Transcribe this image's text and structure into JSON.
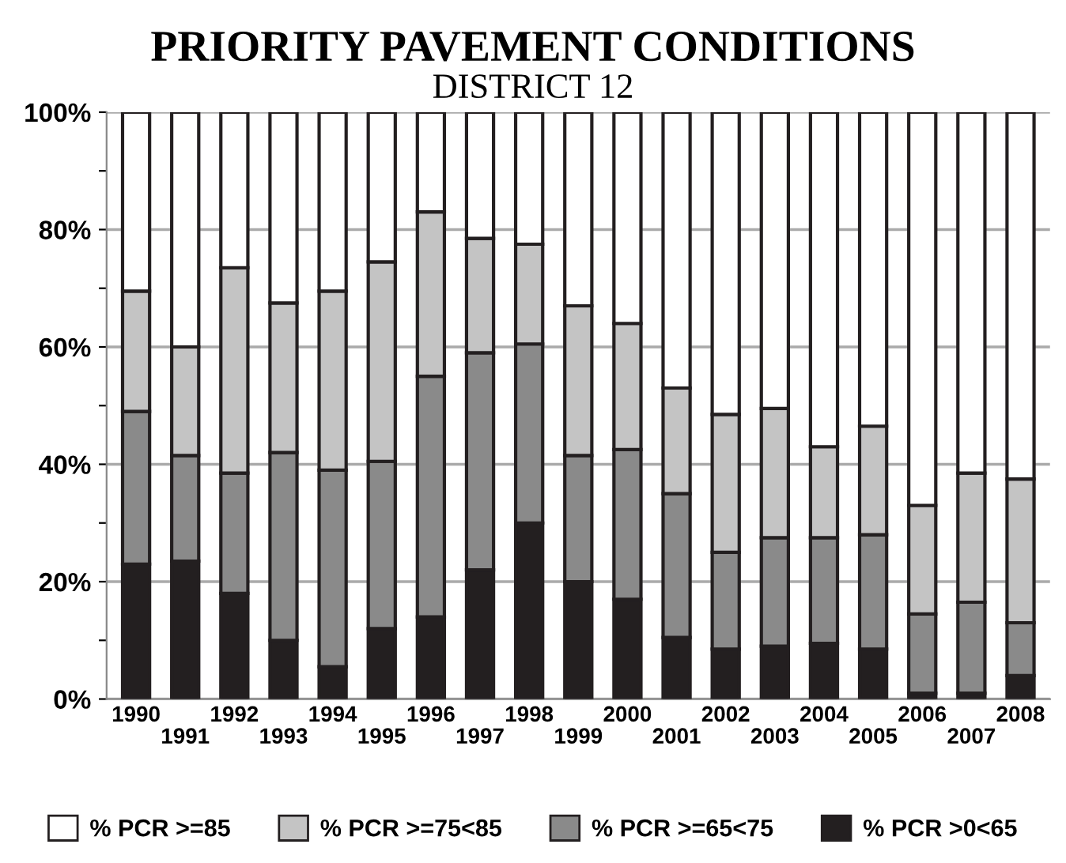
{
  "chart_data": {
    "type": "bar",
    "title": "PRIORITY PAVEMENT CONDITIONS",
    "subtitle": "DISTRICT 12",
    "categories": [
      "1990",
      "1991",
      "1992",
      "1993",
      "1994",
      "1995",
      "1996",
      "1997",
      "1998",
      "1999",
      "2000",
      "2001",
      "2002",
      "2003",
      "2004",
      "2005",
      "2006",
      "2007",
      "2008"
    ],
    "stacked": true,
    "series": [
      {
        "name": "% PCR >0<65",
        "color": "#231f20",
        "values": [
          23,
          23.5,
          18,
          10,
          5.5,
          12,
          14,
          22,
          30,
          20,
          17,
          10.5,
          8.5,
          9,
          9.5,
          8.5,
          1,
          1,
          4
        ]
      },
      {
        "name": "% PCR >=65<75",
        "color": "#8a8a8a",
        "values": [
          26,
          18,
          20.5,
          32,
          33.5,
          28.5,
          41,
          37,
          30.5,
          21.5,
          25.5,
          24.5,
          16.5,
          18.5,
          18,
          19.5,
          13.5,
          15.5,
          9
        ]
      },
      {
        "name": "% PCR >=75<85",
        "color": "#c4c4c4",
        "values": [
          20.5,
          18.5,
          35,
          25.5,
          30.5,
          34,
          28,
          19.5,
          17,
          25.5,
          21.5,
          18,
          23.5,
          22,
          15.5,
          18.5,
          18.5,
          22,
          24.5
        ]
      },
      {
        "name": "% PCR >=85",
        "color": "#ffffff",
        "values": [
          30.5,
          40,
          26.5,
          32.5,
          30.5,
          25.5,
          17,
          21.5,
          22.5,
          33,
          36,
          47,
          51.5,
          50.5,
          57,
          53.5,
          67,
          61.5,
          62.5
        ]
      }
    ],
    "ylim": [
      0,
      100
    ],
    "yticks": [
      {
        "value": 0,
        "label": "0%"
      },
      {
        "value": 10,
        "label": null
      },
      {
        "value": 20,
        "label": "20%"
      },
      {
        "value": 30,
        "label": null
      },
      {
        "value": 40,
        "label": "40%"
      },
      {
        "value": 50,
        "label": null
      },
      {
        "value": 60,
        "label": "60%"
      },
      {
        "value": 70,
        "label": null
      },
      {
        "value": 80,
        "label": "80%"
      },
      {
        "value": 90,
        "label": null
      },
      {
        "value": 100,
        "label": "100%"
      }
    ],
    "grid": "y",
    "legend": "bottom"
  }
}
